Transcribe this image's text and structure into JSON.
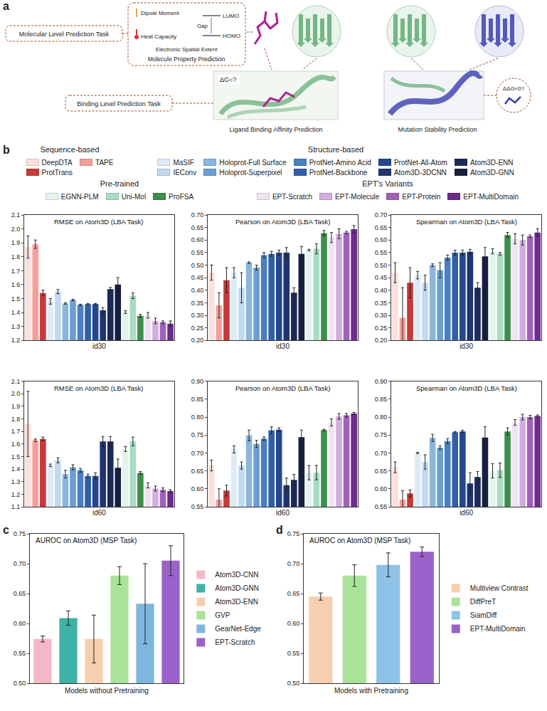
{
  "panel_labels": [
    "a",
    "b",
    "c",
    "d"
  ],
  "diagram": {
    "molecular_task": "Molecular Level Prediction Task",
    "binding_task": "Binding Level Prediction Task",
    "dipole": "Dipole Moment",
    "lumo": "LUMO",
    "gap": "Gap",
    "homo": "HOMO",
    "heat": "Heat Capacity",
    "spatial": "Electronic Spatial Extent",
    "property_caption": "Molecule Property Prediction",
    "lba_question": "ΔG=?",
    "lba_caption": "Ligand Binding Affinity Prediction",
    "msp_question": "ΔΔG<0?",
    "msp_caption": "Mutation Stability Prediction"
  },
  "legend_groups": [
    {
      "title": "Sequence-based",
      "items": [
        {
          "name": "DeepDTA",
          "color": "#fbe0dd"
        },
        {
          "name": "TAPE",
          "color": "#f4a09a"
        },
        {
          "name": "ProtTrans",
          "color": "#c73a3a"
        }
      ]
    },
    {
      "title": "Structure-based",
      "items": [
        {
          "name": "MaSIF",
          "color": "#deebf7"
        },
        {
          "name": "IEConv",
          "color": "#c2d9ee"
        },
        {
          "name": "Holoprot-Full Surface",
          "color": "#8ab6dc"
        },
        {
          "name": "Holoprot-Superpixel",
          "color": "#6a9fd3"
        },
        {
          "name": "ProtNet-Amino Acid",
          "color": "#4a7fc1"
        },
        {
          "name": "ProtNet-Backbone",
          "color": "#2f5fa8"
        },
        {
          "name": "ProtNet-All-Atom",
          "color": "#24478f"
        },
        {
          "name": "Atom3D-3DCNN",
          "color": "#1f3470"
        },
        {
          "name": "Atom3D-ENN",
          "color": "#1c2a58"
        },
        {
          "name": "Atom3D-GNN",
          "color": "#171f3e"
        }
      ]
    },
    {
      "title": "Pre-trained",
      "items": [
        {
          "name": "EGNN-PLM",
          "color": "#e3f3ee"
        },
        {
          "name": "Uni-Mol",
          "color": "#a9dcc2"
        },
        {
          "name": "ProFSA",
          "color": "#3f8f4c"
        }
      ]
    },
    {
      "title": "EPT's Variants",
      "items": [
        {
          "name": "EPT-Scratch",
          "color": "#efe3f2"
        },
        {
          "name": "EPT-Molecule",
          "color": "#d2aee0"
        },
        {
          "name": "EPT-Protein",
          "color": "#a062b8"
        },
        {
          "name": "EPT-MultiDomain",
          "color": "#6d2c8c"
        }
      ]
    }
  ],
  "chart_data": [
    {
      "type": "bar",
      "title": "RMSE on Atom3D (LBA Task)",
      "xlabel": "id30",
      "categories": [
        "DeepDTA",
        "TAPE",
        "ProtTrans",
        "MaSIF",
        "IEConv",
        "Holoprot-Full Surface",
        "Holoprot-Superpixel",
        "ProtNet-Amino Acid",
        "ProtNet-Backbone",
        "ProtNet-All-Atom",
        "Atom3D-3DCNN",
        "Atom3D-ENN",
        "Atom3D-GNN",
        "EGNN-PLM",
        "Uni-Mol",
        "ProFSA",
        "EPT-Scratch",
        "EPT-Molecule",
        "EPT-Protein",
        "EPT-MultiDomain"
      ],
      "colors": [
        "#fbe0dd",
        "#f4a09a",
        "#c73a3a",
        "#deebf7",
        "#c2d9ee",
        "#8ab6dc",
        "#6a9fd3",
        "#4a7fc1",
        "#2f5fa8",
        "#24478f",
        "#1f3470",
        "#1c2a58",
        "#171f3e",
        "#e3f3ee",
        "#a9dcc2",
        "#3f8f4c",
        "#efe3f2",
        "#d2aee0",
        "#a062b8",
        "#6d2c8c"
      ],
      "values": [
        1.87,
        1.89,
        1.54,
        1.48,
        1.55,
        1.465,
        1.49,
        1.455,
        1.46,
        1.46,
        1.416,
        1.568,
        1.601,
        1.403,
        1.52,
        1.377,
        1.38,
        1.34,
        1.33,
        1.32
      ],
      "errors": [
        0.08,
        0.03,
        0.02,
        0.02,
        0.015,
        0.005,
        0.005,
        0.005,
        0.005,
        0.005,
        0.02,
        0.012,
        0.05,
        0.01,
        0.02,
        0.01,
        0.02,
        0.02,
        0.01,
        0.02
      ],
      "ylim": [
        1.2,
        2.1
      ],
      "yticks": [
        1.2,
        1.3,
        1.4,
        1.5,
        1.6,
        1.7,
        1.8,
        1.9,
        {
          "value": 2,
          "label": "2.0"
        },
        2.1
      ],
      "grid": false,
      "tick_labels": "y"
    },
    {
      "type": "bar",
      "title": "Pearson on Atom3D (LBA Task)",
      "xlabel": "id30",
      "categories": [
        "DeepDTA",
        "TAPE",
        "ProtTrans",
        "MaSIF",
        "IEConv",
        "Holoprot-Full Surface",
        "Holoprot-Superpixel",
        "ProtNet-Amino Acid",
        "ProtNet-Backbone",
        "ProtNet-All-Atom",
        "Atom3D-3DCNN",
        "Atom3D-ENN",
        "Atom3D-GNN",
        "EGNN-PLM",
        "Uni-Mol",
        "ProFSA",
        "EPT-Scratch",
        "EPT-Molecule",
        "EPT-Protein",
        "EPT-MultiDomain"
      ],
      "colors": [
        "#fbe0dd",
        "#f4a09a",
        "#c73a3a",
        "#deebf7",
        "#c2d9ee",
        "#8ab6dc",
        "#6a9fd3",
        "#4a7fc1",
        "#2f5fa8",
        "#24478f",
        "#1f3470",
        "#1c2a58",
        "#171f3e",
        "#e3f3ee",
        "#a9dcc2",
        "#3f8f4c",
        "#efe3f2",
        "#d2aee0",
        "#a062b8",
        "#6d2c8c"
      ],
      "values": [
        0.47,
        0.34,
        0.44,
        0.47,
        0.41,
        0.51,
        0.49,
        0.54,
        0.545,
        0.55,
        0.55,
        0.39,
        0.545,
        0.56,
        0.565,
        0.628,
        0.61,
        0.625,
        0.63,
        0.643
      ],
      "errors": [
        0.03,
        0.05,
        0.05,
        0.02,
        0.06,
        0.003,
        0.01,
        0.01,
        0.01,
        0.01,
        0.02,
        0.02,
        0.03,
        0.003,
        0.02,
        0.01,
        0.02,
        0.02,
        0.005,
        0.015
      ],
      "ylim": [
        0.2,
        0.7
      ],
      "yticks": [
        {
          "value": 0.2,
          "label": "0.20"
        },
        0.25,
        {
          "value": 0.3,
          "label": "0.30"
        },
        0.35,
        {
          "value": 0.4,
          "label": "0.40"
        },
        0.45,
        {
          "value": 0.5,
          "label": "0.50"
        },
        0.55,
        {
          "value": 0.6,
          "label": "0.60"
        },
        0.65,
        {
          "value": 0.7,
          "label": "0.70"
        }
      ],
      "grid": false,
      "tick_labels": "y"
    },
    {
      "type": "bar",
      "title": "Spearman on Atom3D (LBA Task)",
      "xlabel": "id30",
      "categories": [
        "DeepDTA",
        "TAPE",
        "ProtTrans",
        "MaSIF",
        "IEConv",
        "Holoprot-Full Surface",
        "Holoprot-Superpixel",
        "ProtNet-Amino Acid",
        "ProtNet-Backbone",
        "ProtNet-All-Atom",
        "Atom3D-3DCNN",
        "Atom3D-ENN",
        "Atom3D-GNN",
        "EGNN-PLM",
        "Uni-Mol",
        "ProFSA",
        "EPT-Scratch",
        "EPT-Molecule",
        "EPT-Protein",
        "EPT-MultiDomain"
      ],
      "colors": [
        "#fbe0dd",
        "#f4a09a",
        "#c73a3a",
        "#deebf7",
        "#c2d9ee",
        "#8ab6dc",
        "#6a9fd3",
        "#4a7fc1",
        "#2f5fa8",
        "#24478f",
        "#1f3470",
        "#1c2a58",
        "#171f3e",
        "#e3f3ee",
        "#a9dcc2",
        "#3f8f4c",
        "#efe3f2",
        "#d2aee0",
        "#a062b8",
        "#6d2c8c"
      ],
      "values": [
        0.47,
        0.29,
        0.43,
        0.46,
        0.43,
        0.5,
        0.48,
        0.53,
        0.55,
        0.55,
        0.553,
        0.41,
        0.535,
        0.555,
        0.545,
        0.62,
        0.605,
        0.6,
        0.615,
        0.63
      ],
      "errors": [
        0.04,
        0.12,
        0.06,
        0.015,
        0.03,
        0.005,
        0.03,
        0.01,
        0.01,
        0.01,
        0.01,
        0.02,
        0.035,
        0.01,
        0.005,
        0.01,
        0.02,
        0.02,
        0.005,
        0.015
      ],
      "ylim": [
        0.2,
        0.7
      ],
      "yticks": [
        {
          "value": 0.2,
          "label": "0.20"
        },
        0.25,
        {
          "value": 0.3,
          "label": "0.30"
        },
        0.35,
        {
          "value": 0.4,
          "label": "0.40"
        },
        0.45,
        {
          "value": 0.5,
          "label": "0.50"
        },
        0.55,
        {
          "value": 0.6,
          "label": "0.60"
        },
        0.65,
        {
          "value": 0.7,
          "label": "0.70"
        }
      ],
      "grid": false,
      "tick_labels": "y"
    },
    {
      "type": "bar",
      "title": "RMSE on Atom3D (LBA Task)",
      "xlabel": "id60",
      "categories": [
        "DeepDTA",
        "TAPE",
        "ProtTrans",
        "MaSIF",
        "IEConv",
        "Holoprot-Full Surface",
        "Holoprot-Superpixel",
        "ProtNet-Amino Acid",
        "ProtNet-Backbone",
        "ProtNet-All-Atom",
        "Atom3D-3DCNN",
        "Atom3D-ENN",
        "Atom3D-GNN",
        "EGNN-PLM",
        "Uni-Mol",
        "ProFSA",
        "EPT-Scratch",
        "EPT-Molecule",
        "EPT-Protein",
        "EPT-MultiDomain"
      ],
      "colors": [
        "#fbe0dd",
        "#f4a09a",
        "#c73a3a",
        "#deebf7",
        "#c2d9ee",
        "#8ab6dc",
        "#6a9fd3",
        "#4a7fc1",
        "#2f5fa8",
        "#24478f",
        "#1f3470",
        "#1c2a58",
        "#171f3e",
        "#e3f3ee",
        "#a9dcc2",
        "#3f8f4c",
        "#efe3f2",
        "#d2aee0",
        "#a062b8",
        "#6d2c8c"
      ],
      "values": [
        1.76,
        1.63,
        1.64,
        1.43,
        1.47,
        1.36,
        1.415,
        1.39,
        1.345,
        1.345,
        1.62,
        1.62,
        1.41,
        1.56,
        1.62,
        1.37,
        1.27,
        1.245,
        1.235,
        1.225
      ],
      "errors": [
        0.26,
        0.01,
        0.015,
        0.01,
        0.02,
        0.03,
        0.02,
        0.015,
        0.015,
        0.025,
        0.04,
        0.04,
        0.07,
        0.02,
        0.035,
        0.01,
        0.02,
        0.02,
        0.015,
        0.01
      ],
      "ylim": [
        1.1,
        2.1
      ],
      "yticks": [
        1.1,
        1.2,
        1.3,
        1.4,
        1.5,
        1.6,
        1.7,
        1.8,
        1.9,
        {
          "value": 2,
          "label": "2.0"
        },
        2.1
      ],
      "grid": false,
      "tick_labels": "y"
    },
    {
      "type": "bar",
      "title": "Pearson on Atom3D (LBA Task)",
      "xlabel": "id60",
      "categories": [
        "DeepDTA",
        "TAPE",
        "ProtTrans",
        "MaSIF",
        "IEConv",
        "Holoprot-Full Surface",
        "Holoprot-Superpixel",
        "ProtNet-Amino Acid",
        "ProtNet-Backbone",
        "ProtNet-All-Atom",
        "Atom3D-3DCNN",
        "Atom3D-ENN",
        "Atom3D-GNN",
        "EGNN-PLM",
        "Uni-Mol",
        "ProFSA",
        "EPT-Scratch",
        "EPT-Molecule",
        "EPT-Protein",
        "EPT-MultiDomain"
      ],
      "colors": [
        "#fbe0dd",
        "#f4a09a",
        "#c73a3a",
        "#deebf7",
        "#c2d9ee",
        "#8ab6dc",
        "#6a9fd3",
        "#4a7fc1",
        "#2f5fa8",
        "#24478f",
        "#1f3470",
        "#1c2a58",
        "#171f3e",
        "#e3f3ee",
        "#a9dcc2",
        "#3f8f4c",
        "#efe3f2",
        "#d2aee0",
        "#a062b8",
        "#6d2c8c"
      ],
      "values": [
        0.665,
        0.57,
        0.595,
        0.71,
        0.665,
        0.749,
        0.725,
        0.74,
        0.763,
        0.765,
        0.61,
        0.625,
        0.744,
        0.645,
        0.645,
        0.764,
        0.785,
        0.802,
        0.805,
        0.81
      ],
      "errors": [
        0.015,
        0.03,
        0.015,
        0.01,
        0.01,
        0.015,
        0.01,
        0.005,
        0.01,
        0.005,
        0.02,
        0.015,
        0.02,
        0.02,
        0.02,
        0.002,
        0.01,
        0.008,
        0.005,
        0.003
      ],
      "ylim": [
        0.55,
        0.9
      ],
      "yticks": [
        0.55,
        {
          "value": 0.6,
          "label": "0.60"
        },
        0.65,
        {
          "value": 0.7,
          "label": "0.70"
        },
        0.75,
        {
          "value": 0.8,
          "label": "0.80"
        },
        0.85,
        {
          "value": 0.9,
          "label": "0.90"
        }
      ],
      "grid": false,
      "tick_labels": "y"
    },
    {
      "type": "bar",
      "title": "Spearman on Atom3D (LBA Task)",
      "xlabel": "id60",
      "categories": [
        "DeepDTA",
        "TAPE",
        "ProtTrans",
        "MaSIF",
        "IEConv",
        "Holoprot-Full Surface",
        "Holoprot-Superpixel",
        "ProtNet-Amino Acid",
        "ProtNet-Backbone",
        "ProtNet-All-Atom",
        "Atom3D-3DCNN",
        "Atom3D-ENN",
        "Atom3D-GNN",
        "EGNN-PLM",
        "Uni-Mol",
        "ProFSA",
        "EPT-Scratch",
        "EPT-Molecule",
        "EPT-Protein",
        "EPT-MultiDomain"
      ],
      "colors": [
        "#fbe0dd",
        "#f4a09a",
        "#c73a3a",
        "#deebf7",
        "#c2d9ee",
        "#8ab6dc",
        "#6a9fd3",
        "#4a7fc1",
        "#2f5fa8",
        "#24478f",
        "#1f3470",
        "#1c2a58",
        "#171f3e",
        "#e3f3ee",
        "#a9dcc2",
        "#3f8f4c",
        "#efe3f2",
        "#d2aee0",
        "#a062b8",
        "#6d2c8c"
      ],
      "values": [
        0.66,
        0.57,
        0.587,
        0.7,
        0.675,
        0.742,
        0.715,
        0.733,
        0.758,
        0.76,
        0.615,
        0.633,
        0.743,
        0.65,
        0.652,
        0.76,
        0.785,
        0.8,
        0.8,
        0.803
      ],
      "errors": [
        0.015,
        0.025,
        0.01,
        0.002,
        0.02,
        0.01,
        0.005,
        0.007,
        0.002,
        0.003,
        0.03,
        0.015,
        0.03,
        0.02,
        0.02,
        0.01,
        0.008,
        0.008,
        0.005,
        0.003
      ],
      "ylim": [
        0.55,
        0.9
      ],
      "yticks": [
        0.55,
        {
          "value": 0.6,
          "label": "0.60"
        },
        0.65,
        {
          "value": 0.7,
          "label": "0.70"
        },
        0.75,
        {
          "value": 0.8,
          "label": "0.80"
        },
        0.85,
        {
          "value": 0.9,
          "label": "0.90"
        }
      ],
      "grid": false,
      "tick_labels": "y"
    },
    {
      "type": "bar",
      "title": "AUROC on Atom3D (MSP Task)",
      "xlabel": "Models without Pretraining",
      "categories": [
        "Atom3D-CNN",
        "Atom3D-GNN",
        "Atom3D-ENN",
        "GVP",
        "GearNet-Edge",
        "EPT-Scratch"
      ],
      "colors": [
        "#f4b8c4",
        "#3fb2a6",
        "#f6cfae",
        "#a9e39a",
        "#7fb6dd",
        "#9a62c8"
      ],
      "values": [
        0.574,
        0.609,
        0.574,
        0.68,
        0.633,
        0.705
      ],
      "errors": [
        0.005,
        0.012,
        0.04,
        0.015,
        0.067,
        0.025
      ],
      "ylim": [
        0.5,
        0.75
      ],
      "yticks": [
        {
          "value": 0.5,
          "label": "0.50"
        },
        0.55,
        {
          "value": 0.6,
          "label": "0.60"
        },
        0.65,
        {
          "value": 0.7,
          "label": "0.70"
        },
        0.75
      ],
      "grid": false,
      "tick_labels": "y",
      "legend": "right"
    },
    {
      "type": "bar",
      "title": "AUROC on Atom3D (MSP Task)",
      "xlabel": "Models with Pretraining",
      "categories": [
        "Multiview Contrast",
        "DiffPreT",
        "SiamDiff",
        "EPT-MultiDomain"
      ],
      "colors": [
        "#f6cfae",
        "#a9e39a",
        "#8ec2e6",
        "#9a62c8"
      ],
      "values": [
        0.645,
        0.68,
        0.698,
        0.72
      ],
      "errors": [
        0.006,
        0.018,
        0.02,
        0.008
      ],
      "ylim": [
        0.5,
        0.75
      ],
      "yticks": [
        {
          "value": 0.5,
          "label": "0.50"
        },
        0.55,
        {
          "value": 0.6,
          "label": "0.60"
        },
        0.65,
        {
          "value": 0.7,
          "label": "0.70"
        },
        0.75
      ],
      "grid": false,
      "tick_labels": "y",
      "legend": "right"
    }
  ]
}
